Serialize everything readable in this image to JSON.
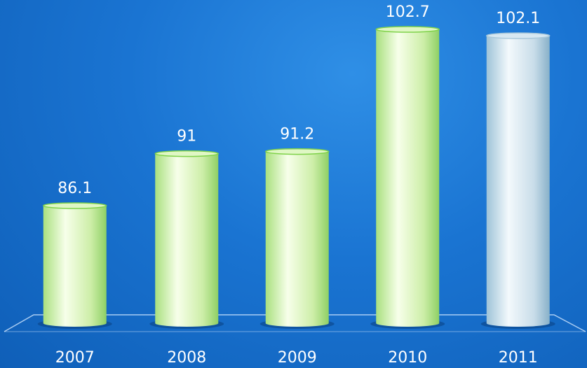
{
  "chart_data": {
    "type": "bar",
    "categories": [
      "2007",
      "2008",
      "2009",
      "2010",
      "2011"
    ],
    "values": [
      86.1,
      91,
      91.2,
      102.7,
      102.1
    ],
    "value_labels": [
      "86.1",
      "91",
      "91.2",
      "102.7",
      "102.1"
    ],
    "title": "",
    "xlabel": "",
    "ylabel": "",
    "grid": false,
    "legend": "none",
    "colors": {
      "background": "#1a74d2",
      "bar_default_light": "#f4ffe6",
      "bar_default_dark": "#94d86a",
      "bar_highlight_light": "#f2f8fb",
      "bar_highlight_dark": "#8fb7cf",
      "highlight_category": "2011",
      "text": "#ffffff"
    }
  }
}
